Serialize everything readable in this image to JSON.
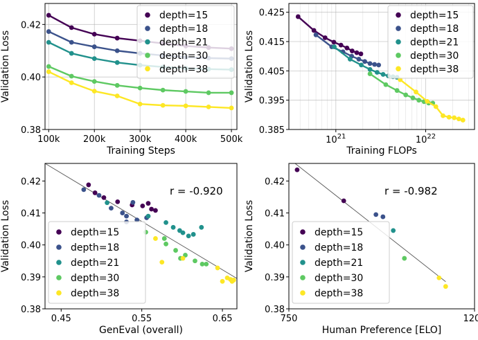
{
  "colors": {
    "depth=15": "#440154",
    "depth=18": "#3b528b",
    "depth=21": "#21918c",
    "depth=30": "#5ec962",
    "depth=38": "#fde725",
    "fit_line": "#555555",
    "grid": "#b0b0b0",
    "legend_border": "#cccccc"
  },
  "chart_data": [
    {
      "id": "steps",
      "type": "line",
      "xlabel": "Training Steps",
      "ylabel": "Validation Loss",
      "xscale": "linear",
      "yscale": "linear",
      "xlim": [
        92000,
        512000
      ],
      "ylim": [
        0.38,
        0.428
      ],
      "xticks": [
        100000,
        200000,
        300000,
        400000,
        500000
      ],
      "xticklabels": [
        "100k",
        "200k",
        "300k",
        "400k",
        "500k"
      ],
      "yticks": [
        0.38,
        0.4,
        0.42
      ],
      "yticklabels": [
        "0.38",
        "0.40",
        "0.42"
      ],
      "grid": true,
      "legend": "upper right",
      "x": [
        100000,
        150000,
        200000,
        250000,
        300000,
        350000,
        400000,
        450000,
        500000
      ],
      "series": [
        {
          "name": "depth=15",
          "values": [
            0.4235,
            0.4188,
            0.4163,
            0.4148,
            0.4138,
            0.4128,
            0.4118,
            0.4112,
            0.4108
          ]
        },
        {
          "name": "depth=18",
          "values": [
            0.4173,
            0.4132,
            0.4115,
            0.41,
            0.409,
            0.4082,
            0.4075,
            0.4072,
            0.407
          ]
        },
        {
          "name": "depth=21",
          "values": [
            0.4132,
            0.409,
            0.407,
            0.4055,
            0.4045,
            0.4038,
            0.4033,
            0.403,
            0.4028
          ]
        },
        {
          "name": "depth=30",
          "values": [
            0.404,
            0.4003,
            0.3983,
            0.3968,
            0.3958,
            0.395,
            0.3945,
            0.394,
            0.394
          ]
        },
        {
          "name": "depth=38",
          "values": [
            0.402,
            0.3978,
            0.3946,
            0.3928,
            0.3897,
            0.3892,
            0.389,
            0.3886,
            0.3882
          ]
        }
      ]
    },
    {
      "id": "flops",
      "type": "line",
      "xlabel": "Training FLOPs",
      "ylabel": "Validation Loss",
      "xscale": "log",
      "yscale": "linear",
      "xlim": [
        3e+20,
        3.5e+22
      ],
      "ylim": [
        0.385,
        0.428
      ],
      "xticks": [
        1e+21,
        1e+22
      ],
      "xtick_base": "10",
      "xtick_exponents": [
        "21",
        "22"
      ],
      "yticks": [
        0.385,
        0.395,
        0.405,
        0.415,
        0.425
      ],
      "yticklabels": [
        "0.385",
        "0.395",
        "0.405",
        "0.415",
        "0.425"
      ],
      "grid": true,
      "legend": "upper right",
      "series": [
        {
          "name": "depth=15",
          "x": [
            3.8e+20,
            5.7e+20,
            7.6e+20,
            9.5e+20,
            1.14e+21,
            1.33e+21,
            1.52e+21,
            1.71e+21,
            1.9e+21
          ],
          "values": [
            0.4235,
            0.4188,
            0.4163,
            0.4148,
            0.4138,
            0.4128,
            0.4118,
            0.4112,
            0.4108
          ]
        },
        {
          "name": "depth=18",
          "x": [
            6e+20,
            9e+20,
            1.2e+21,
            1.5e+21,
            1.8e+21,
            2.1e+21,
            2.4e+21,
            2.7e+21,
            3e+21
          ],
          "values": [
            0.4173,
            0.4132,
            0.4115,
            0.41,
            0.409,
            0.4082,
            0.4075,
            0.4072,
            0.407
          ]
        },
        {
          "name": "depth=21",
          "x": [
            9.6e+20,
            1.44e+21,
            1.92e+21,
            2.4e+21,
            2.88e+21,
            3.36e+21,
            3.84e+21,
            4.32e+21,
            4.8e+21
          ],
          "values": [
            0.4132,
            0.409,
            0.407,
            0.4055,
            0.4045,
            0.4038,
            0.4033,
            0.403,
            0.4028
          ]
        },
        {
          "name": "depth=30",
          "x": [
            2.4e+21,
            3.6e+21,
            4.8e+21,
            6e+21,
            7.2e+21,
            8.4e+21,
            9.6e+21,
            1.08e+22,
            1.2e+22
          ],
          "values": [
            0.404,
            0.4003,
            0.3983,
            0.3968,
            0.3958,
            0.395,
            0.3945,
            0.394,
            0.394
          ]
        },
        {
          "name": "depth=38",
          "x": [
            5.2e+21,
            7.8e+21,
            1.04e+22,
            1.3e+22,
            1.56e+22,
            1.82e+22,
            2.08e+22,
            2.34e+22,
            2.6e+22
          ],
          "values": [
            0.402,
            0.3978,
            0.3946,
            0.3928,
            0.3897,
            0.3892,
            0.389,
            0.3886,
            0.3882
          ]
        }
      ]
    },
    {
      "id": "geneval",
      "type": "scatter",
      "xlabel": "GenEval (overall)",
      "ylabel": "Validation Loss",
      "xscale": "linear",
      "yscale": "linear",
      "xlim": [
        0.43,
        0.668
      ],
      "ylim": [
        0.38,
        0.4255
      ],
      "xticks": [
        0.45,
        0.55,
        0.65
      ],
      "xticklabels": [
        "0.45",
        "0.55",
        "0.65"
      ],
      "yticks": [
        0.38,
        0.39,
        0.4,
        0.41,
        0.42
      ],
      "yticklabels": [
        "0.38",
        "0.39",
        "0.40",
        "0.41",
        "0.42"
      ],
      "grid": false,
      "legend": "lower left",
      "annotation": "r = -0.920",
      "fit_line": {
        "x": [
          0.43,
          0.668
        ],
        "y": [
          0.4255,
          0.3895
        ]
      },
      "series": [
        {
          "name": "depth=15",
          "x": [
            0.484,
            0.492,
            0.503,
            0.52,
            0.538,
            0.551,
            0.558,
            0.562,
            0.567
          ],
          "y": [
            0.4188,
            0.4163,
            0.4148,
            0.4135,
            0.4125,
            0.4122,
            0.413,
            0.4112,
            0.4108
          ]
        },
        {
          "name": "depth=18",
          "x": [
            0.478,
            0.497,
            0.512,
            0.526,
            0.531,
            0.539,
            0.556,
            0.531,
            0.544
          ],
          "y": [
            0.4173,
            0.4155,
            0.4115,
            0.41,
            0.409,
            0.4133,
            0.4085,
            0.4072,
            0.4078
          ]
        },
        {
          "name": "depth=21",
          "x": [
            0.507,
            0.558,
            0.58,
            0.589,
            0.597,
            0.601,
            0.614,
            0.624,
            0.608
          ],
          "y": [
            0.4132,
            0.409,
            0.407,
            0.4055,
            0.4045,
            0.4038,
            0.4033,
            0.4055,
            0.4028
          ]
        },
        {
          "name": "depth=30",
          "x": [
            0.555,
            0.578,
            0.58,
            0.592,
            0.604,
            0.598,
            0.616,
            0.625,
            0.63
          ],
          "y": [
            0.404,
            0.402,
            0.4003,
            0.3983,
            0.3968,
            0.3958,
            0.395,
            0.394,
            0.394
          ]
        },
        {
          "name": "depth=38",
          "x": [
            0.567,
            0.575,
            0.601,
            0.644,
            0.656,
            0.66,
            0.664,
            0.662,
            0.65
          ],
          "y": [
            0.402,
            0.3946,
            0.3958,
            0.3928,
            0.3897,
            0.3892,
            0.389,
            0.3886,
            0.3886
          ]
        }
      ]
    },
    {
      "id": "elo",
      "type": "scatter",
      "xlabel": "Human Preference [ELO]",
      "ylabel": "Validation Loss",
      "xscale": "linear",
      "yscale": "linear",
      "xlim": [
        750,
        1200
      ],
      "ylim": [
        0.38,
        0.4255
      ],
      "xticks": [
        750,
        1200
      ],
      "xticklabels": [
        "750",
        "1200"
      ],
      "yticks": [
        0.38,
        0.39,
        0.4,
        0.41,
        0.42
      ],
      "yticklabels": [
        "0.38",
        "0.39",
        "0.40",
        "0.41",
        "0.42"
      ],
      "grid": false,
      "legend": "lower left",
      "annotation": "r = -0.982",
      "fit_line": {
        "x": [
          765,
          1130
        ],
        "y": [
          0.4255,
          0.3885
        ]
      },
      "series": [
        {
          "name": "depth=15",
          "x": [
            770,
            883
          ],
          "y": [
            0.4235,
            0.4138
          ]
        },
        {
          "name": "depth=18",
          "x": [
            961,
            978
          ],
          "y": [
            0.4095,
            0.4088
          ]
        },
        {
          "name": "depth=21",
          "x": [
            1003
          ],
          "y": [
            0.4045
          ]
        },
        {
          "name": "depth=30",
          "x": [
            1030
          ],
          "y": [
            0.3958
          ]
        },
        {
          "name": "depth=38",
          "x": [
            1114,
            1130
          ],
          "y": [
            0.3897,
            0.387
          ]
        }
      ]
    }
  ],
  "legend_entries": [
    "depth=15",
    "depth=18",
    "depth=21",
    "depth=30",
    "depth=38"
  ]
}
